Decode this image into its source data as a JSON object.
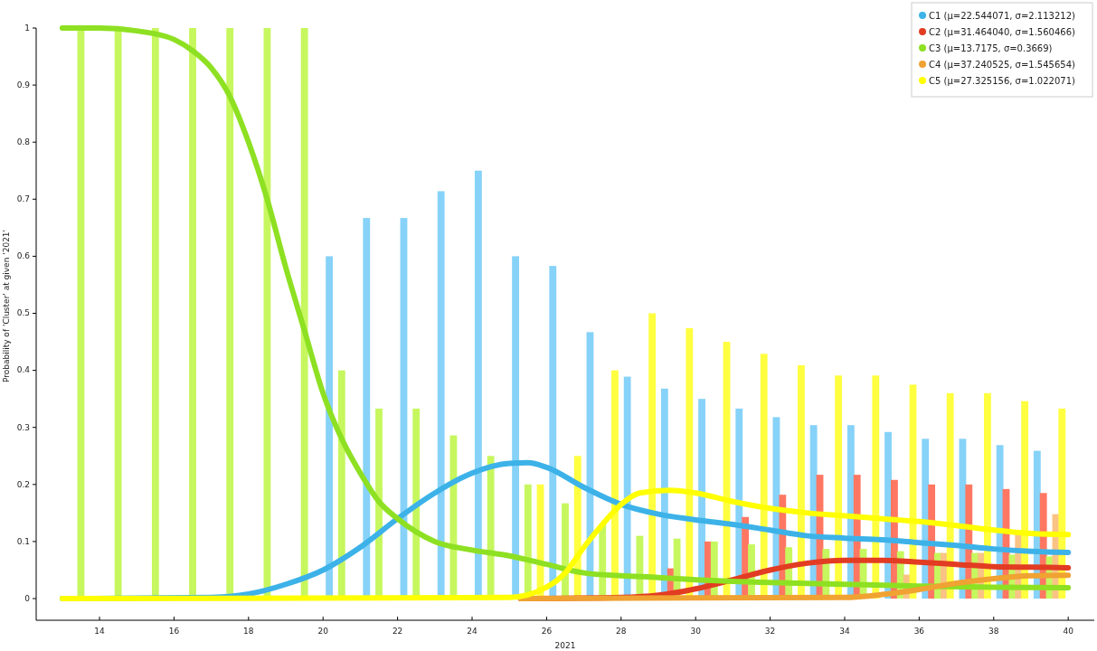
{
  "chart_data": {
    "type": "bar",
    "xlabel": "2021",
    "ylabel": "Probability of 'Cluster' at given '2021'",
    "xlim": [
      12.3,
      40.7
    ],
    "ylim": [
      -0.038,
      1
    ],
    "xticks": [
      14,
      16,
      18,
      20,
      22,
      24,
      26,
      28,
      30,
      32,
      34,
      36,
      38,
      40
    ],
    "yticks": [
      0,
      0.1,
      0.2,
      0.3,
      0.4,
      0.5,
      0.6,
      0.7,
      0.8,
      0.9,
      1
    ],
    "legend": "top right",
    "x": [
      13.5,
      14.5,
      15.5,
      16.5,
      17.5,
      18.5,
      19.5,
      20.5,
      21.5,
      22.5,
      23.5,
      24.5,
      25.5,
      26.5,
      27.5,
      28.5,
      29.5,
      30.5,
      31.5,
      32.5,
      33.5,
      34.5,
      35.5,
      36.5,
      37.5,
      38.5,
      39.5
    ],
    "series": [
      {
        "color": "#86d2f8",
        "values": [
          null,
          null,
          null,
          null,
          null,
          null,
          null,
          0.6,
          0.667,
          0.667,
          0.714,
          0.75,
          0.6,
          0.583,
          0.467,
          0.389,
          0.368,
          0.35,
          0.333,
          0.318,
          0.304,
          0.304,
          0.292,
          0.28,
          0.28,
          0.269,
          0.259
        ]
      },
      {
        "color": "#ff7762",
        "values": [
          null,
          null,
          null,
          null,
          null,
          null,
          null,
          null,
          null,
          null,
          null,
          null,
          null,
          null,
          null,
          null,
          0.053,
          0.1,
          0.143,
          0.182,
          0.217,
          0.217,
          0.208,
          0.2,
          0.2,
          0.192,
          0.185
        ]
      },
      {
        "color": "#c6f75e",
        "values": [
          1,
          1,
          1,
          1,
          1,
          1,
          1,
          0.4,
          0.333,
          0.333,
          0.286,
          0.25,
          0.2,
          0.167,
          0.13,
          0.11,
          0.105,
          0.1,
          0.095,
          0.09,
          0.087,
          0.087,
          0.083,
          0.08,
          0.08,
          0.077,
          0.074
        ]
      },
      {
        "color": "#f9c385",
        "values": [
          null,
          null,
          null,
          null,
          null,
          null,
          null,
          null,
          null,
          null,
          null,
          null,
          null,
          null,
          null,
          null,
          null,
          null,
          null,
          null,
          null,
          null,
          0.042,
          0.08,
          0.08,
          0.115,
          0.148
        ]
      },
      {
        "color": "#ffff40",
        "values": [
          null,
          null,
          null,
          null,
          null,
          null,
          null,
          null,
          null,
          null,
          null,
          null,
          0.2,
          0.25,
          0.4,
          0.5,
          0.474,
          0.45,
          0.429,
          0.409,
          0.391,
          0.391,
          0.375,
          0.36,
          0.36,
          0.346,
          0.333
        ]
      },
      {
        "type": "line",
        "name": "C1 (μ=22.544071, σ=2.113212)",
        "color": "#3cb2e8",
        "x": [
          13,
          17,
          18,
          19,
          20,
          21,
          22,
          23,
          24,
          25,
          25.5,
          26,
          27,
          28,
          29,
          30,
          31,
          32,
          33,
          34,
          35,
          36,
          37,
          38,
          39,
          40
        ],
        "values": [
          0,
          0.002,
          0.008,
          0.025,
          0.05,
          0.09,
          0.14,
          0.185,
          0.22,
          0.237,
          0.238,
          0.23,
          0.195,
          0.165,
          0.148,
          0.138,
          0.13,
          0.12,
          0.11,
          0.106,
          0.103,
          0.098,
          0.093,
          0.087,
          0.083,
          0.081
        ]
      },
      {
        "type": "line",
        "name": "C2 (μ=31.464040, σ=1.560466)",
        "color": "#e23c22",
        "x": [
          25.3,
          28,
          29,
          30,
          31,
          32,
          33,
          34,
          35,
          36,
          37,
          38,
          39,
          40
        ],
        "values": [
          0,
          0.002,
          0.006,
          0.017,
          0.033,
          0.05,
          0.062,
          0.067,
          0.067,
          0.064,
          0.06,
          0.056,
          0.055,
          0.054
        ]
      },
      {
        "type": "line",
        "name": "C3 (μ=13.7175, σ=0.3669)",
        "color": "#8ee022",
        "x": [
          13,
          14,
          15,
          16,
          16.5,
          17,
          17.5,
          18,
          18.5,
          19,
          19.5,
          20,
          20.5,
          21,
          21.5,
          22,
          23,
          24,
          25,
          26,
          27,
          28,
          29,
          30,
          31,
          32,
          34,
          36,
          38,
          40
        ],
        "values": [
          1,
          1,
          0.995,
          0.98,
          0.96,
          0.93,
          0.88,
          0.8,
          0.7,
          0.58,
          0.47,
          0.36,
          0.28,
          0.22,
          0.17,
          0.14,
          0.1,
          0.085,
          0.075,
          0.06,
          0.045,
          0.04,
          0.037,
          0.033,
          0.03,
          0.028,
          0.025,
          0.022,
          0.02,
          0.019
        ]
      },
      {
        "type": "line",
        "name": "C4 (μ=37.240525, σ=1.545654)",
        "color": "#f0a232",
        "x": [
          25.3,
          34,
          35,
          36,
          37,
          38,
          39,
          40
        ],
        "values": [
          0,
          0.002,
          0.007,
          0.016,
          0.027,
          0.035,
          0.04,
          0.041
        ]
      },
      {
        "type": "line",
        "name": "C5 (μ=27.325156, σ=1.022071)",
        "color": "#ffff00",
        "x": [
          13,
          25,
          26,
          26.5,
          27,
          27.5,
          28,
          28.5,
          29.3,
          30,
          31,
          32,
          33,
          34,
          35,
          36,
          37,
          38,
          39,
          40
        ],
        "values": [
          0,
          0.002,
          0.02,
          0.045,
          0.09,
          0.13,
          0.165,
          0.185,
          0.19,
          0.185,
          0.17,
          0.158,
          0.15,
          0.145,
          0.14,
          0.135,
          0.128,
          0.12,
          0.114,
          0.112
        ]
      }
    ]
  }
}
